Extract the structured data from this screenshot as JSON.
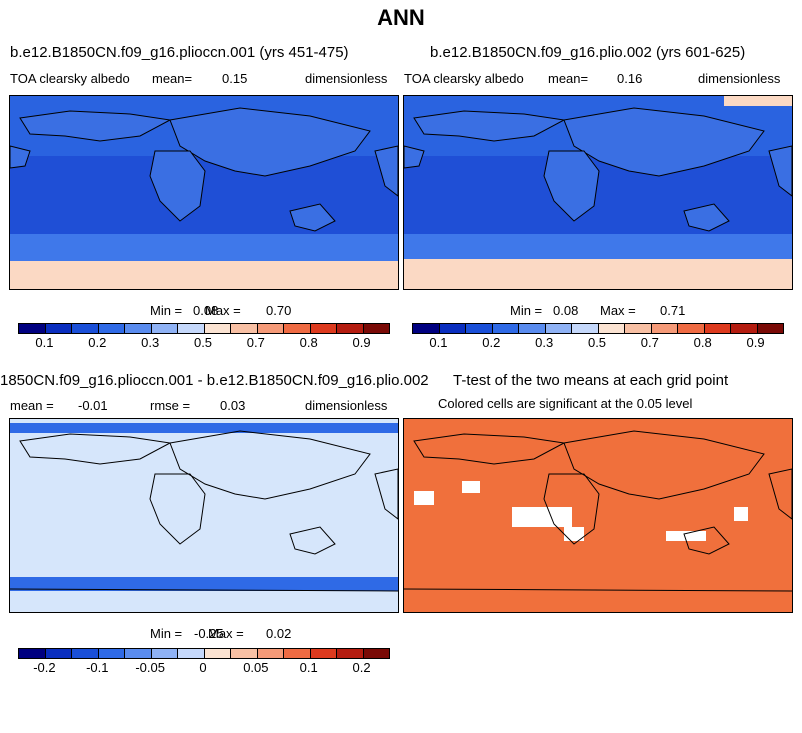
{
  "main_title": "ANN",
  "panels": {
    "p1": {
      "title": "b.e12.B1850CN.f09_g16.plioccn.001 (yrs 451-475)",
      "left_label": "TOA clearsky albedo",
      "mean_label": "mean=",
      "mean_value": "0.15",
      "units": "dimensionless",
      "min_label": "Min =",
      "min_value": "0.08",
      "max_label": "Max =",
      "max_value": "0.70"
    },
    "p2": {
      "title": "b.e12.B1850CN.f09_g16.plio.002 (yrs 601-625)",
      "left_label": "TOA clearsky albedo",
      "mean_label": "mean=",
      "mean_value": "0.16",
      "units": "dimensionless",
      "min_label": "Min =",
      "min_value": "0.08",
      "max_label": "Max =",
      "max_value": "0.71"
    },
    "p3": {
      "title": "1850CN.f09_g16.plioccn.001 - b.e12.B1850CN.f09_g16.plio.002",
      "mean_label": "mean =",
      "mean_value": "-0.01",
      "rmse_label": "rmse =",
      "rmse_value": "0.03",
      "units": "dimensionless",
      "min_label": "Min =",
      "min_value": "-0.25",
      "max_label": "Max =",
      "max_value": "0.02"
    },
    "p4": {
      "title": "T-test of the two means at each grid point",
      "subtitle": "Colored cells are significant at the 0.05 level"
    }
  },
  "colorbar_abs": {
    "colors": [
      "#000080",
      "#0a2ebf",
      "#1a4fd8",
      "#2f6ae6",
      "#5a8cef",
      "#8fb2f5",
      "#c5d8fb",
      "#fbe3d2",
      "#f8c0a4",
      "#f59a78",
      "#ef6b43",
      "#dd3a1e",
      "#b41c10",
      "#7a0a06"
    ],
    "ticks": [
      "0.1",
      "0.2",
      "0.3",
      "0.5",
      "0.7",
      "0.8",
      "0.9"
    ]
  },
  "colorbar_diff": {
    "colors": [
      "#000080",
      "#0a2ebf",
      "#1a4fd8",
      "#2f6ae6",
      "#5a8cef",
      "#8fb2f5",
      "#c5d8fb",
      "#fbe3d2",
      "#f8c0a4",
      "#f59a78",
      "#ef6b43",
      "#dd3a1e",
      "#b41c10",
      "#7a0a06"
    ],
    "ticks": [
      "-0.2",
      "-0.1",
      "-0.05",
      "0",
      "0.05",
      "0.1",
      "0.2"
    ]
  },
  "map_colors": {
    "ocean_tropics": "#1f4fd6",
    "ocean_mid": "#2a63e0",
    "southern_ocean": "#3f78ea",
    "antarctica": "#fbd9c4",
    "land": "#3a6fe3",
    "diff_background": "#d6e6fb",
    "diff_band": "#2f6ae6",
    "ttest_fill": "#f0703c"
  }
}
